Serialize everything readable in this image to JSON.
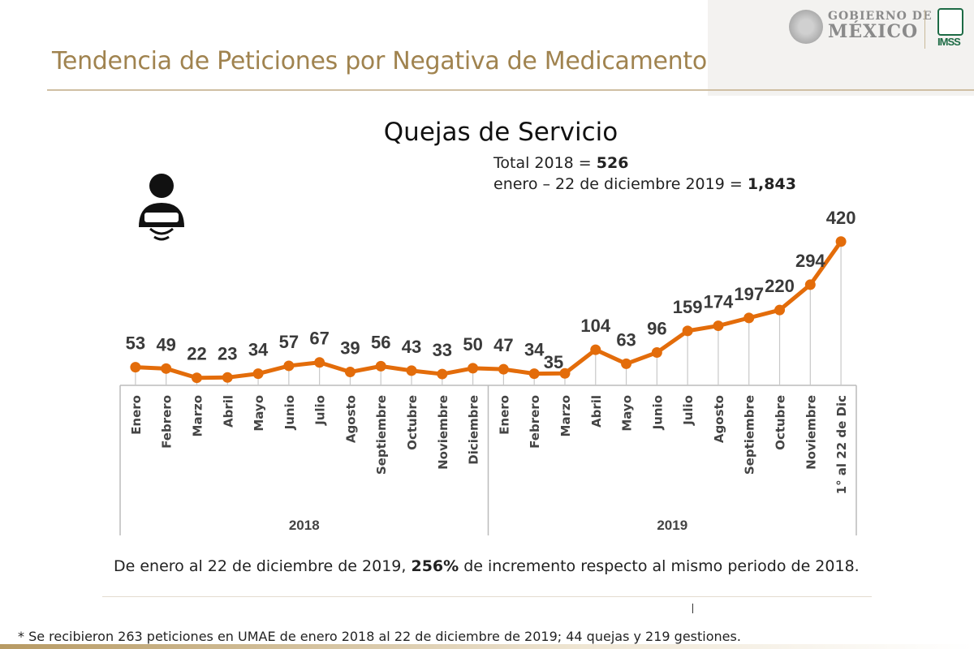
{
  "header": {
    "title": "Tendencia de Peticiones por Negativa de Medicamento",
    "logo_gobierno": "GOBIERNO DE MÉXICO",
    "logo_gobierno_line1": "GOBIERNO DE",
    "logo_gobierno_line2": "MÉXICO",
    "logo_imss": "IMSS"
  },
  "icon": "customer-service-person-icon",
  "totals": {
    "line1_label": "Total 2018 = ",
    "line1_value": "526",
    "line2_label": "enero – 22 de diciembre 2019 = ",
    "line2_value": "1,843"
  },
  "note": {
    "pre": "De enero al 22 de diciembre de 2019, ",
    "bold": "256%",
    "post": " de incremento respecto al mismo periodo de 2018."
  },
  "footnote": "* Se recibieron 263 peticiones en UMAE de enero 2018 al 22 de diciembre de 2019;  44 quejas y 219 gestiones.",
  "colors": {
    "line": "#e36c0a",
    "title": "#a0834f",
    "imss_green": "#1d6b45"
  },
  "chart_data": {
    "type": "line",
    "title": "Quejas de Servicio",
    "groups": [
      {
        "label": "2018",
        "categories": [
          "Enero",
          "Febrero",
          "Marzo",
          "Abril",
          "Mayo",
          "Junio",
          "Julio",
          "Agosto",
          "Septiembre",
          "Octubre",
          "Noviembre",
          "Diciembre"
        ]
      },
      {
        "label": "2019",
        "categories": [
          "Enero",
          "Febrero",
          "Marzo",
          "Abril",
          "Mayo",
          "Junio",
          "Julio",
          "Agosto",
          "Septiembre",
          "Octubre",
          "Noviembre",
          "1° al 22 de Dic"
        ]
      }
    ],
    "values": [
      53,
      49,
      22,
      23,
      34,
      57,
      67,
      39,
      56,
      43,
      33,
      50,
      47,
      34,
      35,
      104,
      63,
      96,
      159,
      174,
      197,
      220,
      294,
      420
    ],
    "ylim": [
      0,
      420
    ],
    "data_labels": true,
    "grid": false,
    "line_color": "#e36c0a"
  }
}
